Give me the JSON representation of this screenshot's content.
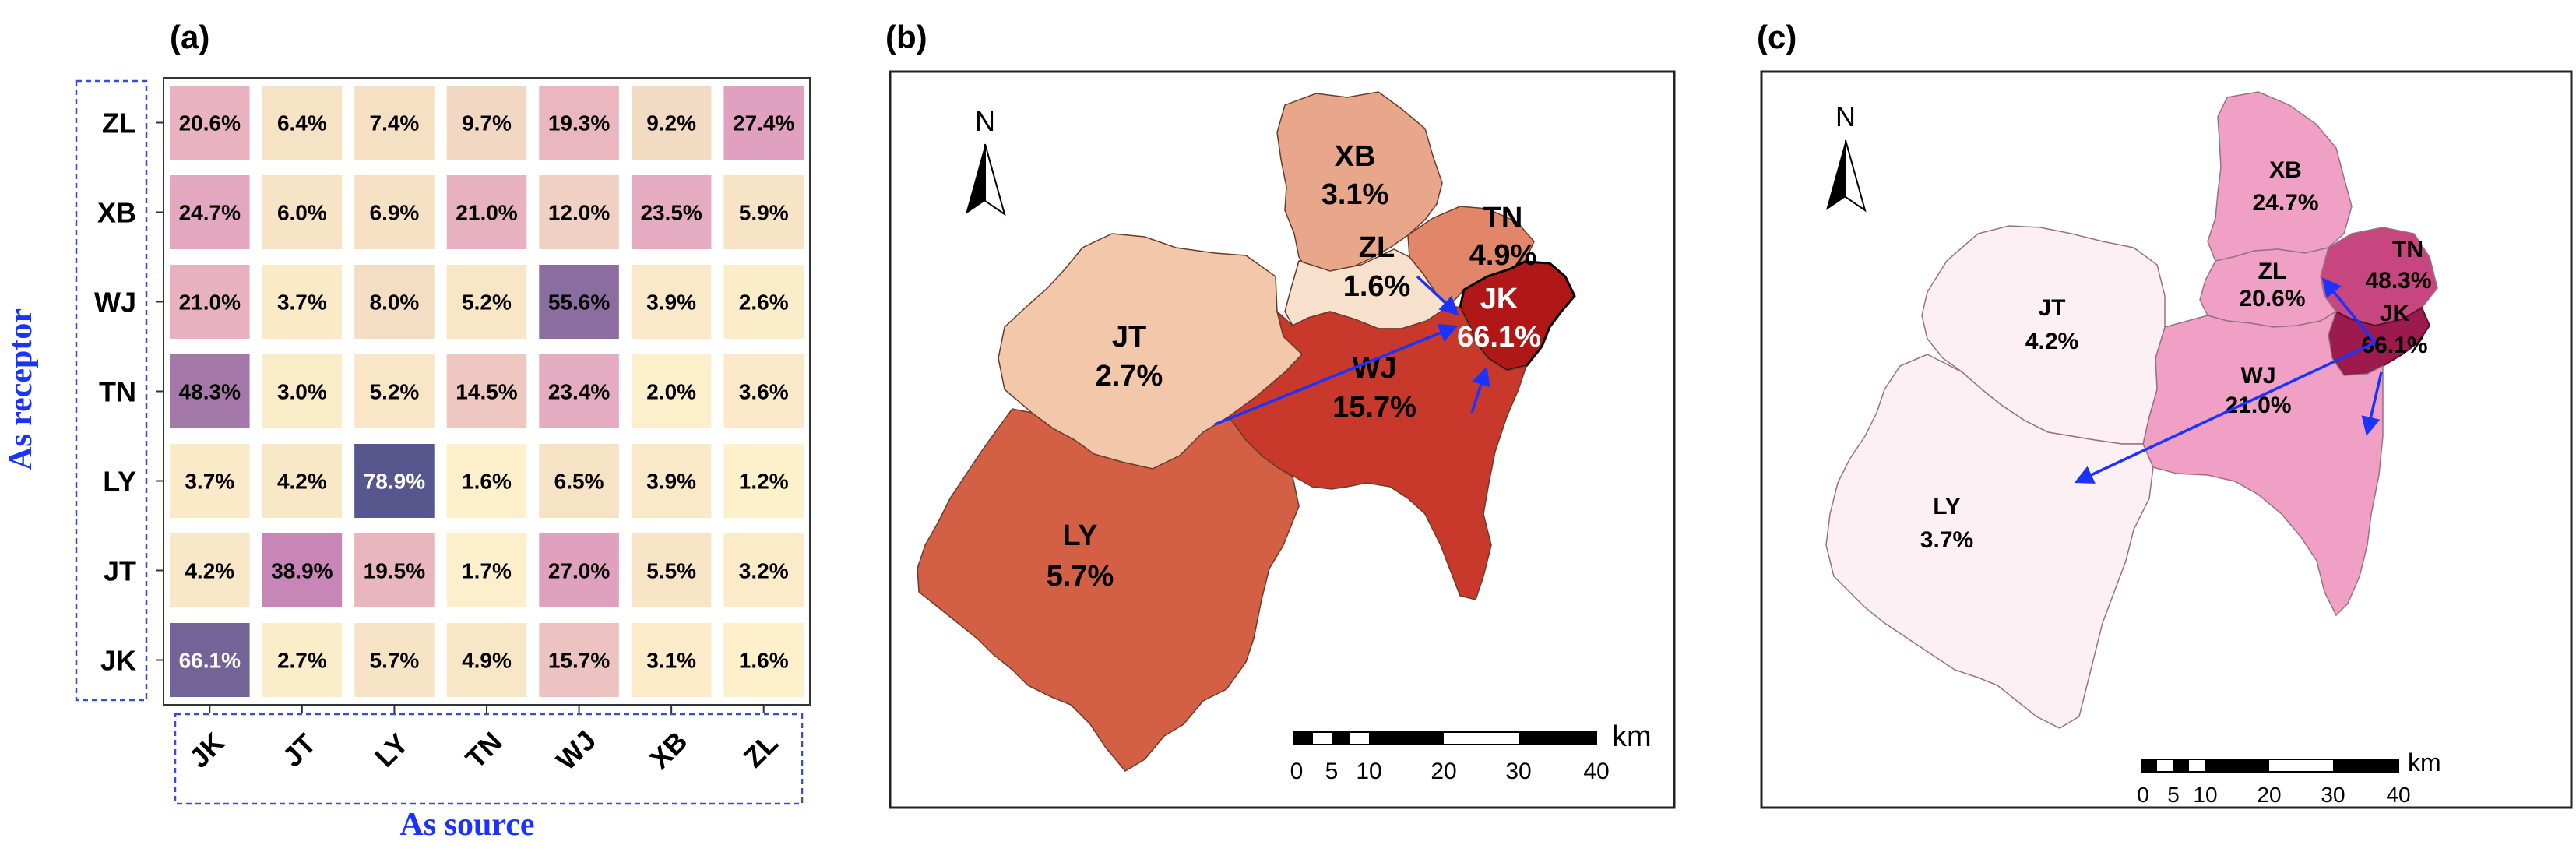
{
  "panel_labels": [
    "(a)",
    "(b)",
    "(c)"
  ],
  "matrix": {
    "ylabel": "As receptor",
    "xlabel": "As source",
    "rows": [
      "ZL",
      "XB",
      "WJ",
      "TN",
      "LY",
      "JT",
      "JK"
    ],
    "cols": [
      "JK",
      "JT",
      "LY",
      "TN",
      "WJ",
      "XB",
      "ZL"
    ]
  },
  "chart_data": [
    {
      "type": "heatmap",
      "title": "",
      "xlabel": "As source",
      "ylabel": "As receptor",
      "x": [
        "JK",
        "JT",
        "LY",
        "TN",
        "WJ",
        "XB",
        "ZL"
      ],
      "y": [
        "ZL",
        "XB",
        "WJ",
        "TN",
        "LY",
        "JT",
        "JK"
      ],
      "values": [
        [
          20.6,
          6.4,
          7.4,
          9.7,
          19.3,
          9.2,
          27.4
        ],
        [
          24.7,
          6.0,
          6.9,
          21.0,
          12.0,
          23.5,
          5.9
        ],
        [
          21.0,
          3.7,
          8.0,
          5.2,
          55.6,
          3.9,
          2.6
        ],
        [
          48.3,
          3.0,
          5.2,
          14.5,
          23.4,
          2.0,
          3.6
        ],
        [
          3.7,
          4.2,
          78.9,
          1.6,
          6.5,
          3.9,
          1.2
        ],
        [
          4.2,
          38.9,
          19.5,
          1.7,
          27.0,
          5.5,
          3.2
        ],
        [
          66.1,
          2.7,
          5.7,
          4.9,
          15.7,
          3.1,
          1.6
        ]
      ],
      "labels": [
        [
          "20.6%",
          "6.4%",
          "7.4%",
          "9.7%",
          "19.3%",
          "9.2%",
          "27.4%"
        ],
        [
          "24.7%",
          "6.0%",
          "6.9%",
          "21.0%",
          "12.0%",
          "23.5%",
          "5.9%"
        ],
        [
          "21.0%",
          "3.7%",
          "8.0%",
          "5.2%",
          "55.6%",
          "3.9%",
          "2.6%"
        ],
        [
          "48.3%",
          "3.0%",
          "5.2%",
          "14.5%",
          "23.4%",
          "2.0%",
          "3.6%"
        ],
        [
          "3.7%",
          "4.2%",
          "78.9%",
          "1.6%",
          "6.5%",
          "3.9%",
          "1.2%"
        ],
        [
          "4.2%",
          "38.9%",
          "19.5%",
          "1.7%",
          "27.0%",
          "5.5%",
          "3.2%"
        ],
        [
          "66.1%",
          "2.7%",
          "5.7%",
          "4.9%",
          "15.7%",
          "3.1%",
          "1.6%"
        ]
      ],
      "unit": "%"
    }
  ],
  "map_b": {
    "north": "N",
    "regions": [
      {
        "id": "XB",
        "value": "3.1%",
        "color": "#e8a78a"
      },
      {
        "id": "JT",
        "value": "2.7%",
        "color": "#f2c7aa"
      },
      {
        "id": "ZL",
        "value": "1.6%",
        "color": "#f7e1cc"
      },
      {
        "id": "TN",
        "value": "4.9%",
        "color": "#e2866a"
      },
      {
        "id": "JK",
        "value": "66.1%",
        "color": "#b01818"
      },
      {
        "id": "WJ",
        "value": "15.7%",
        "color": "#c8392b"
      },
      {
        "id": "LY",
        "value": "5.7%",
        "color": "#d35f45"
      }
    ],
    "scale": {
      "unit": "km",
      "ticks": [
        "0",
        "5",
        "10",
        "20",
        "30",
        "40"
      ]
    }
  },
  "map_c": {
    "north": "N",
    "regions": [
      {
        "id": "XB",
        "value": "24.7%",
        "color": "#f0a0c4"
      },
      {
        "id": "ZL",
        "value": "20.6%",
        "color": "#f0a0c4"
      },
      {
        "id": "TN",
        "value": "48.3%",
        "color": "#c8467f"
      },
      {
        "id": "JK",
        "value": "66.1%",
        "color": "#9c1a4e"
      },
      {
        "id": "WJ",
        "value": "21.0%",
        "color": "#f0a0c4"
      },
      {
        "id": "JT",
        "value": "4.2%",
        "color": "#fcf0f4"
      },
      {
        "id": "LY",
        "value": "3.7%",
        "color": "#fcf0f4"
      }
    ],
    "scale": {
      "unit": "km",
      "ticks": [
        "0",
        "5",
        "10",
        "20",
        "30",
        "40"
      ]
    }
  },
  "colors": {
    "arrow": "#1a33ff",
    "label_box": "#3b4bd8"
  }
}
